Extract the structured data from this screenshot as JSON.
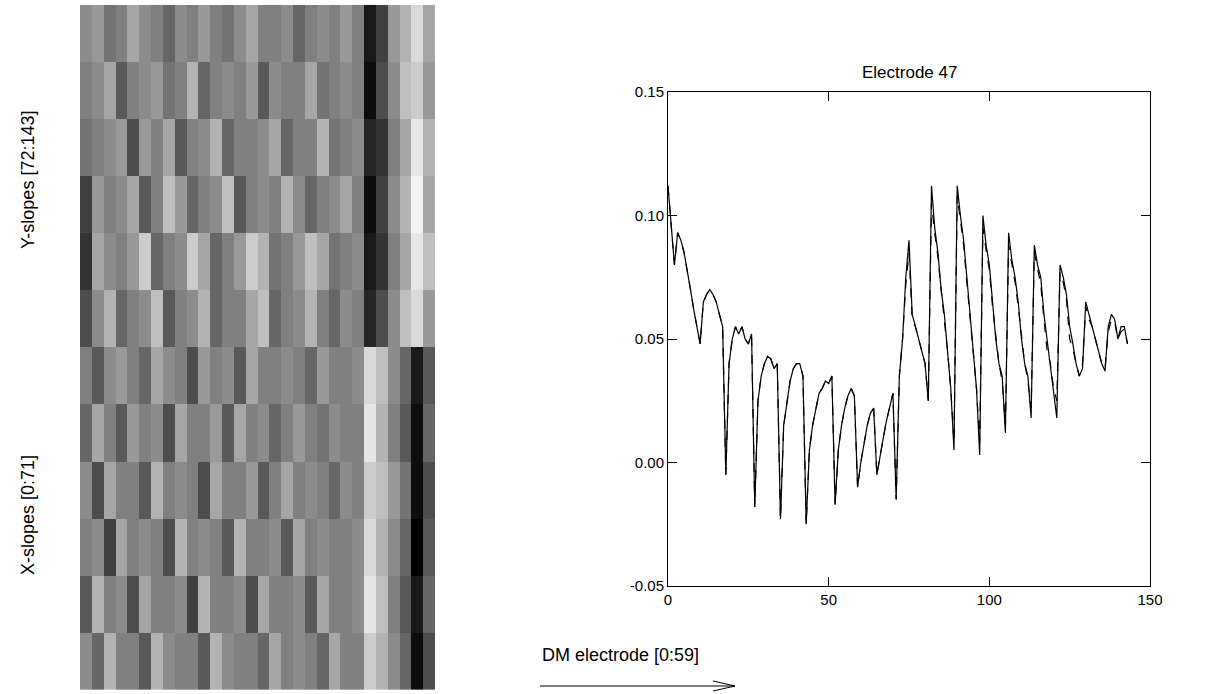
{
  "chart_data": [
    {
      "type": "heatmap",
      "color": "gray",
      "tick_labels": false,
      "ylabels": [
        "Y-slopes [72:143]",
        "X-slopes [0:71]"
      ],
      "xlabel": "DM electrode [0:59]",
      "zlim": [
        -1,
        1
      ],
      "z": [
        [
          0.1,
          0.2,
          -0.1,
          0.0,
          0.3,
          0.1,
          0.0,
          -0.2,
          0.1,
          0.0,
          0.2,
          0.0,
          -0.1,
          0.1,
          0.3,
          0.0,
          0.0,
          0.1,
          -0.2,
          0.0,
          0.1,
          0.0,
          0.2,
          0.0,
          -0.8,
          -0.5,
          0.2,
          0.4,
          0.7,
          0.3
        ],
        [
          0.0,
          0.1,
          0.3,
          -0.3,
          0.0,
          0.1,
          0.2,
          -0.1,
          0.0,
          0.4,
          -0.2,
          0.0,
          0.1,
          0.0,
          0.2,
          -0.3,
          0.1,
          0.0,
          0.0,
          0.3,
          -0.1,
          0.0,
          0.1,
          0.0,
          -0.9,
          -0.4,
          0.1,
          0.5,
          0.6,
          0.2
        ],
        [
          -0.1,
          0.0,
          0.1,
          0.2,
          -0.4,
          0.2,
          0.0,
          0.3,
          -0.3,
          0.0,
          0.1,
          0.4,
          -0.2,
          0.0,
          0.0,
          0.1,
          0.3,
          -0.2,
          0.0,
          0.0,
          0.4,
          -0.1,
          0.0,
          0.1,
          -0.7,
          -0.6,
          0.0,
          0.3,
          0.8,
          0.4
        ],
        [
          -0.5,
          0.2,
          0.0,
          0.1,
          0.3,
          -0.3,
          0.0,
          0.5,
          0.2,
          -0.2,
          0.0,
          0.1,
          0.5,
          -0.3,
          0.0,
          0.1,
          0.0,
          0.4,
          0.1,
          -0.2,
          0.0,
          0.1,
          0.3,
          0.0,
          -0.9,
          -0.5,
          0.1,
          0.4,
          0.9,
          0.3
        ],
        [
          -0.6,
          0.3,
          0.1,
          0.0,
          0.2,
          0.6,
          -0.2,
          0.0,
          0.1,
          0.6,
          0.3,
          -0.2,
          0.0,
          0.2,
          0.6,
          0.4,
          -0.1,
          0.0,
          0.2,
          0.5,
          0.3,
          -0.1,
          0.0,
          0.1,
          -0.8,
          -0.6,
          0.0,
          0.3,
          0.8,
          0.5
        ],
        [
          -0.4,
          0.1,
          0.4,
          -0.2,
          0.0,
          0.1,
          0.5,
          -0.3,
          0.0,
          0.1,
          0.4,
          -0.2,
          0.0,
          0.0,
          0.3,
          0.5,
          -0.2,
          0.0,
          0.1,
          0.4,
          0.0,
          -0.2,
          0.1,
          0.0,
          -0.7,
          -0.4,
          0.1,
          0.5,
          0.7,
          0.2
        ],
        [
          0.0,
          -0.3,
          0.1,
          0.2,
          0.0,
          -0.2,
          0.3,
          0.1,
          0.0,
          -0.4,
          0.2,
          0.0,
          0.1,
          -0.3,
          0.3,
          0.0,
          0.0,
          0.1,
          0.0,
          -0.2,
          0.2,
          0.0,
          0.0,
          0.1,
          0.7,
          0.5,
          0.1,
          -0.2,
          -0.8,
          -0.3
        ],
        [
          -0.2,
          0.3,
          0.0,
          -0.3,
          0.2,
          0.0,
          0.1,
          -0.4,
          0.3,
          0.0,
          0.0,
          0.2,
          -0.3,
          0.3,
          0.0,
          0.1,
          -0.2,
          0.0,
          0.2,
          0.0,
          -0.1,
          0.1,
          0.0,
          0.0,
          0.8,
          0.4,
          0.0,
          -0.3,
          -0.9,
          -0.2
        ],
        [
          0.1,
          -0.4,
          0.3,
          0.0,
          0.0,
          -0.3,
          0.4,
          0.0,
          0.1,
          0.0,
          -0.4,
          0.3,
          0.0,
          0.0,
          0.2,
          -0.3,
          0.0,
          0.3,
          0.0,
          0.1,
          0.0,
          -0.2,
          0.1,
          0.0,
          0.6,
          0.5,
          0.2,
          -0.1,
          -0.9,
          -0.4
        ],
        [
          0.0,
          0.1,
          -0.5,
          0.3,
          0.0,
          0.1,
          0.0,
          -0.4,
          0.4,
          0.0,
          0.1,
          0.0,
          -0.3,
          0.4,
          0.0,
          0.0,
          0.1,
          -0.3,
          0.3,
          0.0,
          0.1,
          0.0,
          0.0,
          0.1,
          0.7,
          0.4,
          0.1,
          -0.2,
          -1.0,
          -0.3
        ],
        [
          -0.3,
          0.4,
          0.0,
          0.1,
          -0.4,
          0.3,
          0.0,
          0.0,
          0.1,
          -0.5,
          0.4,
          0.0,
          0.0,
          0.1,
          -0.4,
          0.3,
          0.0,
          0.0,
          0.1,
          -0.3,
          0.3,
          0.0,
          0.0,
          0.1,
          0.8,
          0.5,
          0.0,
          -0.3,
          -0.8,
          -0.2
        ],
        [
          0.1,
          -0.2,
          0.4,
          0.0,
          0.0,
          -0.3,
          0.4,
          0.1,
          0.0,
          0.0,
          -0.3,
          0.4,
          0.1,
          0.0,
          0.0,
          -0.2,
          0.3,
          0.0,
          0.1,
          0.0,
          -0.2,
          0.3,
          0.0,
          0.0,
          0.6,
          0.4,
          0.1,
          -0.2,
          -0.9,
          -0.4
        ]
      ]
    },
    {
      "type": "line",
      "title": "Electrode 47",
      "xlim": [
        0,
        150
      ],
      "xticks": [
        0,
        50,
        100,
        150
      ],
      "ylim": [
        -0.05,
        0.15
      ],
      "yticks": [
        -0.05,
        {
          "value": 0,
          "label": "0.00"
        },
        0.05,
        {
          "value": 0.1,
          "label": "0.10"
        },
        0.15
      ],
      "grid": false,
      "x": [
        0,
        1,
        2,
        3,
        4,
        5,
        6,
        7,
        8,
        9,
        10,
        11,
        12,
        13,
        14,
        15,
        16,
        17,
        18,
        19,
        20,
        21,
        22,
        23,
        24,
        25,
        26,
        27,
        28,
        29,
        30,
        31,
        32,
        33,
        34,
        35,
        36,
        37,
        38,
        39,
        40,
        41,
        42,
        43,
        44,
        45,
        46,
        47,
        48,
        49,
        50,
        51,
        52,
        53,
        54,
        55,
        56,
        57,
        58,
        59,
        60,
        61,
        62,
        63,
        64,
        65,
        66,
        67,
        68,
        69,
        70,
        71,
        72,
        73,
        74,
        75,
        76,
        77,
        78,
        79,
        80,
        81,
        82,
        83,
        84,
        85,
        86,
        87,
        88,
        89,
        90,
        91,
        92,
        93,
        94,
        95,
        96,
        97,
        98,
        99,
        100,
        101,
        102,
        103,
        104,
        105,
        106,
        107,
        108,
        109,
        110,
        111,
        112,
        113,
        114,
        115,
        116,
        117,
        118,
        119,
        120,
        121,
        122,
        123,
        124,
        125,
        126,
        127,
        128,
        129,
        130,
        131,
        132,
        133,
        134,
        135,
        136,
        137,
        138,
        139,
        140,
        141,
        142,
        143
      ],
      "series": [
        {
          "color": "black",
          "line_style": "solid",
          "values": [
            0.112,
            0.095,
            0.08,
            0.093,
            0.09,
            0.085,
            0.078,
            0.07,
            0.062,
            0.055,
            0.048,
            0.065,
            0.068,
            0.07,
            0.068,
            0.065,
            0.06,
            0.055,
            -0.005,
            0.04,
            0.05,
            0.055,
            0.052,
            0.055,
            0.05,
            0.048,
            0.052,
            -0.018,
            0.025,
            0.035,
            0.04,
            0.043,
            0.042,
            0.038,
            0.04,
            -0.023,
            0.015,
            0.025,
            0.033,
            0.038,
            0.04,
            0.04,
            0.035,
            -0.025,
            0.005,
            0.015,
            0.022,
            0.028,
            0.03,
            0.033,
            0.032,
            0.035,
            -0.017,
            0.005,
            0.015,
            0.022,
            0.027,
            0.03,
            0.027,
            -0.01,
            0.0,
            0.008,
            0.015,
            0.02,
            0.022,
            -0.005,
            0.003,
            0.01,
            0.017,
            0.022,
            0.028,
            -0.015,
            0.035,
            0.05,
            0.075,
            0.09,
            0.06,
            0.055,
            0.05,
            0.045,
            0.04,
            0.025,
            0.112,
            0.095,
            0.085,
            0.07,
            0.06,
            0.045,
            0.03,
            0.005,
            0.112,
            0.1,
            0.09,
            0.075,
            0.06,
            0.045,
            0.03,
            0.003,
            0.1,
            0.088,
            0.08,
            0.065,
            0.05,
            0.04,
            0.035,
            0.012,
            0.093,
            0.082,
            0.075,
            0.065,
            0.05,
            0.04,
            0.035,
            0.018,
            0.088,
            0.08,
            0.075,
            0.06,
            0.05,
            0.04,
            0.03,
            0.018,
            0.08,
            0.075,
            0.068,
            0.055,
            0.048,
            0.04,
            0.035,
            0.038,
            0.065,
            0.06,
            0.055,
            0.05,
            0.045,
            0.04,
            0.037,
            0.055,
            0.06,
            0.058,
            0.05,
            0.055,
            0.055,
            0.048
          ]
        },
        {
          "color": "black",
          "line_style": "dashed",
          "values": [
            0.112,
            0.095,
            0.08,
            0.093,
            0.09,
            0.085,
            0.078,
            0.07,
            0.062,
            0.055,
            0.048,
            0.065,
            0.068,
            0.07,
            0.068,
            0.065,
            0.06,
            0.055,
            -0.005,
            0.04,
            0.05,
            0.055,
            0.052,
            0.055,
            0.05,
            0.048,
            0.052,
            -0.018,
            0.025,
            0.035,
            0.04,
            0.043,
            0.042,
            0.038,
            0.04,
            -0.023,
            0.015,
            0.025,
            0.033,
            0.038,
            0.04,
            0.04,
            0.035,
            -0.025,
            0.005,
            0.015,
            0.022,
            0.028,
            0.03,
            0.033,
            0.032,
            0.035,
            -0.017,
            0.005,
            0.015,
            0.022,
            0.027,
            0.03,
            0.027,
            -0.01,
            0.0,
            0.008,
            0.015,
            0.02,
            0.022,
            -0.005,
            0.003,
            0.01,
            0.017,
            0.022,
            0.028,
            -0.015,
            0.035,
            0.05,
            0.072,
            0.085,
            0.058,
            0.055,
            0.05,
            0.045,
            0.04,
            0.025,
            0.105,
            0.093,
            0.083,
            0.07,
            0.058,
            0.045,
            0.03,
            0.008,
            0.108,
            0.098,
            0.088,
            0.073,
            0.058,
            0.045,
            0.03,
            0.008,
            0.095,
            0.086,
            0.078,
            0.063,
            0.05,
            0.04,
            0.033,
            0.015,
            0.088,
            0.08,
            0.073,
            0.063,
            0.05,
            0.04,
            0.033,
            0.022,
            0.085,
            0.078,
            0.072,
            0.058,
            0.045,
            0.04,
            0.03,
            0.025,
            0.077,
            0.073,
            0.066,
            0.05,
            0.046,
            0.04,
            0.035,
            0.04,
            0.063,
            0.058,
            0.055,
            0.05,
            0.045,
            0.04,
            0.038,
            0.053,
            0.058,
            0.057,
            0.05,
            0.053,
            0.054,
            0.048
          ]
        }
      ]
    }
  ]
}
